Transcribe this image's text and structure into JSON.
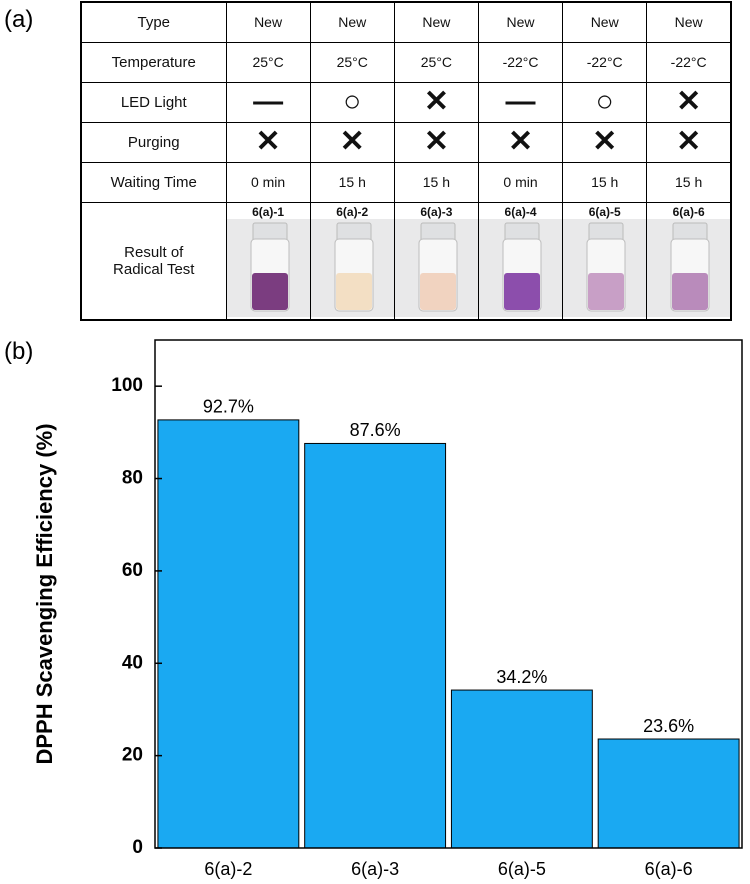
{
  "figure_labels": [
    "(a)",
    "(b)"
  ],
  "table": {
    "rows": [
      [
        "Type",
        "New",
        "New",
        "New",
        "New",
        "New",
        "New"
      ],
      [
        "Temperature",
        "25°C",
        "25°C",
        "25°C",
        "-22°C",
        "-22°C",
        "-22°C"
      ],
      [
        "LED Light",
        "—",
        "○",
        "✕",
        "—",
        "○",
        "✕"
      ],
      [
        "Purging",
        "✕",
        "✕",
        "✕",
        "✕",
        "✕",
        "✕"
      ],
      [
        "Waiting Time",
        "0 min",
        "15 h",
        "15 h",
        "0 min",
        "15 h",
        "15 h"
      ],
      [
        "Result of Radical Test",
        "6(a)-1",
        "6(a)-2",
        "6(a)-3",
        "6(a)-4",
        "6(a)-5",
        "6(a)-6"
      ]
    ]
  },
  "chart_data": {
    "type": "bar",
    "y_label": "DPPH Scavenging Efficiency (%)",
    "categories": [
      "6(a)-2",
      "6(a)-3",
      "6(a)-5",
      "6(a)-6"
    ],
    "values": [
      92.7,
      87.6,
      34.2,
      23.6
    ],
    "value_labels": [
      "92.7%",
      "87.6%",
      "34.2%",
      "23.6%"
    ],
    "color": "#1aa9f2",
    "ylim": [
      0,
      110
    ],
    "yticks": [
      0,
      20,
      40,
      60,
      80,
      100
    ]
  }
}
